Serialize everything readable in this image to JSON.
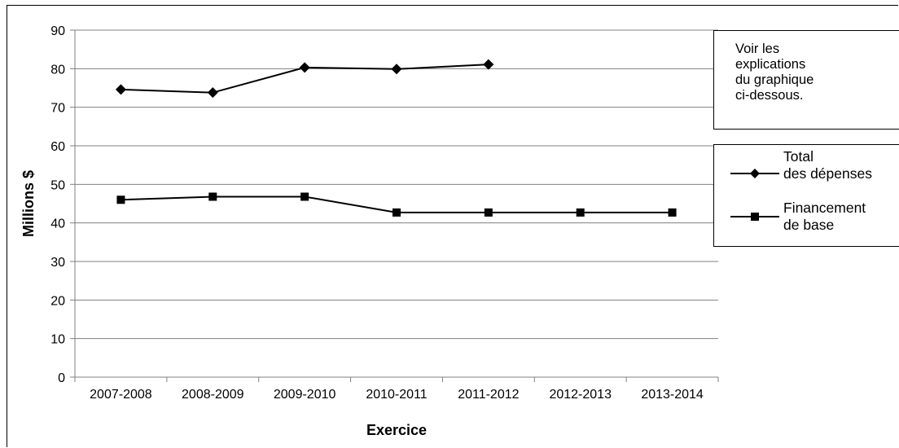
{
  "chart_data": {
    "type": "line",
    "xlabel": "Exercice",
    "ylabel": "Millions $",
    "ylim": [
      0,
      90
    ],
    "yticks": [
      0,
      10,
      20,
      30,
      40,
      50,
      60,
      70,
      80,
      90
    ],
    "grid": true,
    "categories": [
      "2007-2008",
      "2008-2009",
      "2009-2010",
      "2010-2011",
      "2011-2012",
      "2012-2013",
      "2013-2014"
    ],
    "series": [
      {
        "name_lines": [
          "Total",
          "des dépenses"
        ],
        "marker": "diamond",
        "color": "#000000",
        "values": [
          74.6,
          73.8,
          80.3,
          79.9,
          81.1,
          null,
          null
        ]
      },
      {
        "name_lines": [
          "Financement",
          "de base"
        ],
        "marker": "square",
        "color": "#000000",
        "values": [
          46.0,
          46.8,
          46.8,
          42.7,
          42.7,
          42.7,
          42.7
        ]
      }
    ],
    "legend": "right"
  },
  "note": {
    "lines": [
      "Voir les",
      "explications",
      "du graphique",
      "ci-dessous."
    ]
  },
  "colors": {
    "line": "#000000",
    "grid": "#808080",
    "background": "#ffffff"
  }
}
